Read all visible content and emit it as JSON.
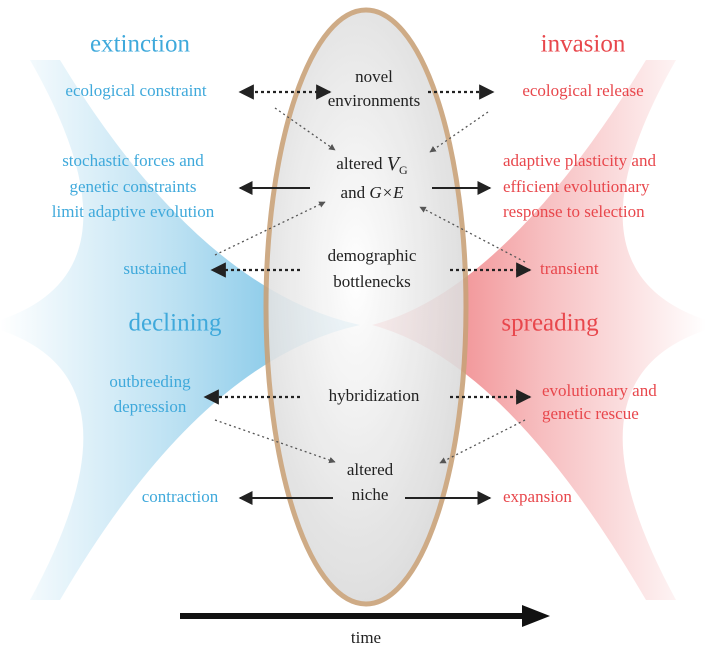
{
  "headings": {
    "left": "extinction",
    "right": "invasion"
  },
  "center": [
    {
      "lines": [
        "novel",
        "environments"
      ]
    },
    {
      "line1": "altered",
      "var": "V",
      "sub": "G",
      "line2": "and",
      "expr": "G×E"
    },
    {
      "lines": [
        "demographic",
        "bottlenecks"
      ]
    },
    {
      "lines": [
        "hybridization"
      ]
    },
    {
      "lines": [
        "altered",
        "niche"
      ]
    }
  ],
  "left": [
    {
      "lines": [
        "ecological constraint"
      ]
    },
    {
      "lines": [
        "stochastic forces and",
        "genetic constraints",
        "limit adaptive evolution"
      ]
    },
    {
      "lines": [
        "sustained"
      ]
    },
    {
      "lines": [
        "declining"
      ]
    },
    {
      "lines": [
        "outbreeding",
        "depression"
      ]
    },
    {
      "lines": [
        "contraction"
      ]
    }
  ],
  "right": [
    {
      "lines": [
        "ecological release"
      ]
    },
    {
      "lines": [
        "adaptive plasticity and",
        "efficient evolutionary",
        "response to selection"
      ]
    },
    {
      "lines": [
        "transient"
      ]
    },
    {
      "lines": [
        "spreading"
      ]
    },
    {
      "lines": [
        "evolutionary and",
        "genetic rescue"
      ]
    },
    {
      "lines": [
        "expansion"
      ]
    }
  ],
  "axis": {
    "label": "time"
  }
}
